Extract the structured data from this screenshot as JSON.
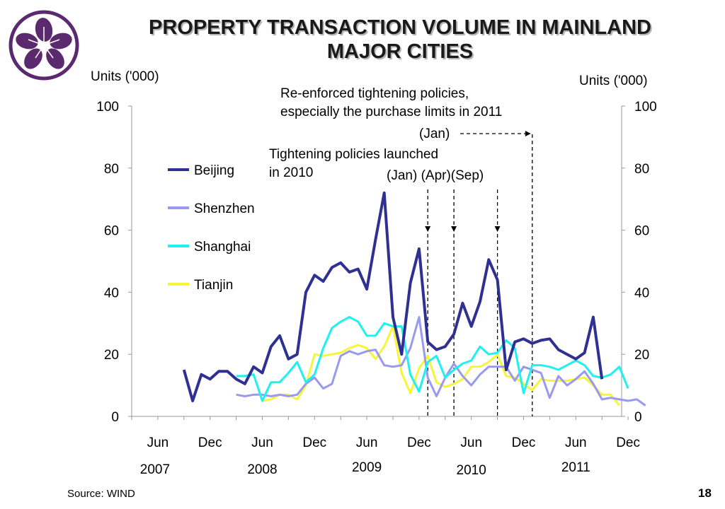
{
  "slide": {
    "title_line1": "PROPERTY TRANSACTION VOLUME IN MAINLAND",
    "title_line2": "MAJOR CITIES",
    "source": "Source: WIND",
    "page_number": "18"
  },
  "annotations": {
    "note_2011": "Re-enforced tightening policies,\nespecially the purchase limits in 2011",
    "note_2011_month": "(Jan)",
    "note_2010": "Tightening policies launched\nin 2010",
    "note_2010_months": "(Jan) (Apr)(Sep)"
  },
  "colors": {
    "beijing": "#2e3192",
    "shenzhen": "#9999ee",
    "shanghai": "#1ff0f0",
    "tianjin": "#f5f53a",
    "logo": "#5b2a6e"
  },
  "chart_data": {
    "type": "line",
    "ylabel_left": "Units ('000)",
    "ylabel_right": "Units ('000)",
    "ylim": [
      0,
      100
    ],
    "yticks": [
      0,
      20,
      40,
      60,
      80,
      100
    ],
    "yticks_right": [
      0,
      20,
      40,
      60,
      80,
      100
    ],
    "x_month_labels": [
      "Jun",
      "Dec",
      "Jun",
      "Dec",
      "Jun",
      "Dec",
      "Jun",
      "Dec",
      "Jun",
      "Dec"
    ],
    "x_year_labels": [
      "2007",
      "2008",
      "2009",
      "2010",
      "2011"
    ],
    "x_start": "2007-03",
    "x_end": "2012-01",
    "legend_position": "left",
    "series": [
      {
        "name": "Beijing",
        "color": "#2e3192",
        "start": "2007-09",
        "values": [
          15,
          5,
          13.5,
          12,
          14.5,
          14.5,
          12,
          10.5,
          16,
          14,
          22.5,
          26,
          18.5,
          20,
          40,
          45.5,
          43.5,
          48,
          49.5,
          46.5,
          47.5,
          41,
          57,
          72,
          32,
          20,
          43,
          54,
          24,
          21.5,
          22.5,
          26.5,
          36.5,
          29,
          37,
          50.5,
          44,
          15,
          24,
          25,
          23.5,
          24.5,
          25,
          21.5,
          20,
          18.5,
          20.5,
          32,
          12
        ]
      },
      {
        "name": "Shenzhen",
        "color": "#9999ee",
        "start": "2008-03",
        "values": [
          7,
          6.5,
          7,
          7,
          6.5,
          7,
          6.5,
          7,
          10.5,
          12.5,
          9,
          10.5,
          19.5,
          21,
          20,
          21,
          21.5,
          16.5,
          16,
          16.5,
          22,
          32,
          12.5,
          6.5,
          12.5,
          17,
          13,
          10,
          13.5,
          16,
          16,
          16,
          11.5,
          16,
          15,
          14,
          6,
          13,
          10,
          12,
          14.5,
          10.5,
          5.5,
          6,
          5.5,
          5,
          5.5,
          3.5
        ]
      },
      {
        "name": "Shanghai",
        "color": "#1ff0f0",
        "start": "2008-03",
        "values": [
          13,
          13,
          13.5,
          5,
          11,
          11,
          14,
          17.5,
          11,
          13.5,
          22,
          28.5,
          30.5,
          32,
          30.5,
          26,
          26,
          30,
          29,
          29,
          13.5,
          8,
          17.5,
          19.5,
          12.5,
          15,
          17,
          18,
          22.5,
          20,
          20.5,
          24.5,
          22,
          7.5,
          16.5,
          16.5,
          16,
          15,
          16.5,
          18,
          16.5,
          13,
          12.5,
          13.5,
          16,
          9
        ]
      },
      {
        "name": "Tianjin",
        "color": "#f5f53a",
        "start": "2008-06",
        "values": [
          5,
          5.5,
          7,
          7,
          5.5,
          10,
          20,
          19.5,
          20,
          20.5,
          22,
          23,
          22,
          18.5,
          22.5,
          29,
          14,
          7.5,
          15.5,
          19.5,
          11,
          9.5,
          10.5,
          12,
          16,
          16,
          17.5,
          20,
          13,
          12.5,
          10.5,
          8.5,
          12,
          11.5,
          11.5,
          11.5,
          12,
          12.5,
          10,
          7,
          7,
          3.5
        ]
      }
    ],
    "markers": [
      {
        "date": "2010-01",
        "label": "(Jan)"
      },
      {
        "date": "2010-04",
        "label": "(Apr)"
      },
      {
        "date": "2010-09",
        "label": "(Sep)"
      },
      {
        "date": "2011-01",
        "label": "(Jan)"
      }
    ]
  }
}
